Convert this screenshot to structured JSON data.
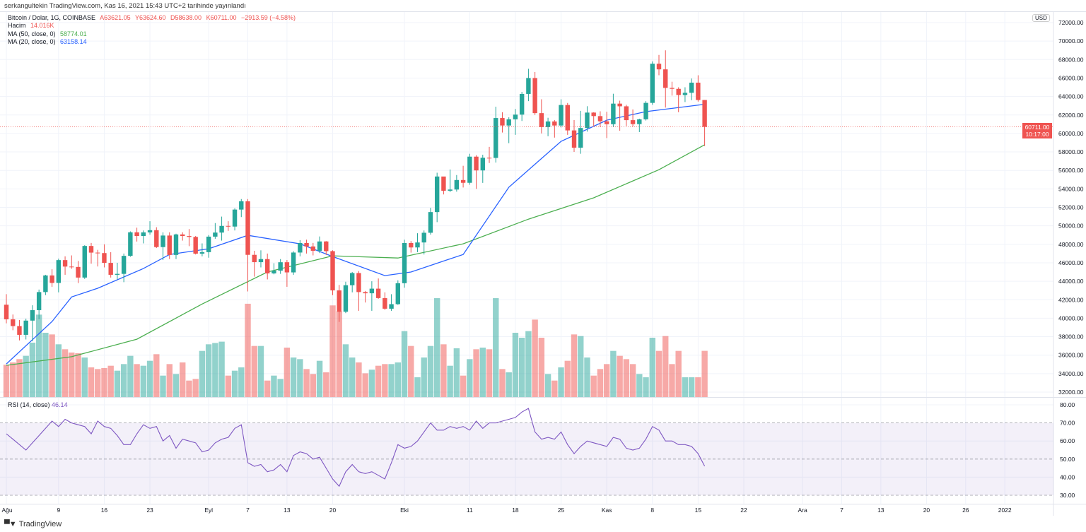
{
  "header": {
    "published": "serkangultekin TradingView.com, Kas 16, 2021 15:43 UTC+2 tarihinde yayınlandı"
  },
  "legend": {
    "symbol": "Bitcoin / Dolar, 1G, COINBASE",
    "open": "A63621.05",
    "high": "Y63624.60",
    "low": "D58638.00",
    "close": "K60711.00",
    "change": "−2913.59 (−4.58%)",
    "volume_label": "Hacim",
    "volume_value": "14.016K",
    "ma50_label": "MA (50, close, 0)",
    "ma50_value": "58774.01",
    "ma20_label": "MA (20, close, 0)",
    "ma20_value": "63158.14",
    "rsi_label": "RSI (14, close)",
    "rsi_value": "46.14"
  },
  "price_axis": {
    "currency": "USD",
    "last_price": "60711.00",
    "countdown": "10:17:00"
  },
  "footer": {
    "logo_mark": "TV",
    "brand": "TradingView"
  },
  "colors": {
    "up": "#26a69a",
    "down": "#ef5350",
    "ma50": "#4caf50",
    "ma20": "#2962ff",
    "rsi": "#7e57c2"
  },
  "chart_data": {
    "type": "candlestick",
    "title": "Bitcoin / Dolar, 1G, COINBASE",
    "x_start": "2021-08-01",
    "ylim": [
      32000,
      72000
    ],
    "y_ticks": [
      "72000.00",
      "70000.00",
      "68000.00",
      "66000.00",
      "64000.00",
      "62000.00",
      "60000.00",
      "58000.00",
      "56000.00",
      "54000.00",
      "52000.00",
      "50000.00",
      "48000.00",
      "46000.00",
      "44000.00",
      "42000.00",
      "40000.00",
      "38000.00",
      "36000.00",
      "34000.00",
      "32000.00"
    ],
    "x_ticks": [
      {
        "day": 0,
        "label": "Ağu"
      },
      {
        "day": 8,
        "label": "9"
      },
      {
        "day": 15,
        "label": "16"
      },
      {
        "day": 22,
        "label": "23"
      },
      {
        "day": 31,
        "label": "Eyl"
      },
      {
        "day": 37,
        "label": "7"
      },
      {
        "day": 43,
        "label": "13"
      },
      {
        "day": 50,
        "label": "20"
      },
      {
        "day": 61,
        "label": "Eki"
      },
      {
        "day": 71,
        "label": "11"
      },
      {
        "day": 78,
        "label": "18"
      },
      {
        "day": 85,
        "label": "25"
      },
      {
        "day": 92,
        "label": "Kas"
      },
      {
        "day": 99,
        "label": "8"
      },
      {
        "day": 106,
        "label": "15"
      },
      {
        "day": 113,
        "label": "22"
      },
      {
        "day": 122,
        "label": "Ara"
      },
      {
        "day": 128,
        "label": "7"
      },
      {
        "day": 134,
        "label": "13"
      },
      {
        "day": 141,
        "label": "20"
      },
      {
        "day": 147,
        "label": "26"
      },
      {
        "day": 153,
        "label": "2022"
      }
    ],
    "open": [
      41460,
      39880,
      39150,
      38200,
      39740,
      40870,
      42830,
      44630,
      43820,
      46290,
      45590,
      45550,
      44400,
      47820,
      47100,
      47050,
      45990,
      44700,
      44800,
      46750,
      49300,
      48900,
      49290,
      49530,
      47700,
      48950,
      46850,
      49070,
      48900,
      48800,
      46990,
      47150,
      48830,
      49270,
      49990,
      49920,
      51760,
      52660,
      46860,
      46070,
      46400,
      44850,
      45150,
      46060,
      44960,
      47110,
      48140,
      47770,
      47300,
      48310,
      47260,
      43010,
      40700,
      43570,
      44890,
      42830,
      42700,
      43200,
      42180,
      41030,
      41520,
      43790,
      48140,
      47660,
      48200,
      49250,
      51490,
      55340,
      53800,
      53930,
      54960,
      54660,
      57490,
      56000,
      57370,
      57350,
      61670,
      60860,
      61530,
      62040,
      64280,
      66000,
      62200,
      60690,
      61300,
      60860,
      63080,
      60330,
      58460,
      60590,
      62260,
      61880,
      61320,
      61000,
      63230,
      62940,
      61440,
      61010,
      61530,
      63310,
      67550,
      66940,
      64930,
      64830,
      64160,
      64400,
      65500,
      63621.05
    ],
    "high": [
      42600,
      40400,
      39800,
      39950,
      41400,
      43100,
      44700,
      45300,
      46450,
      46700,
      46800,
      46200,
      47900,
      48150,
      47400,
      48000,
      47150,
      46000,
      47000,
      49400,
      49800,
      49500,
      50500,
      49850,
      49300,
      49300,
      49150,
      49300,
      49650,
      48900,
      48100,
      49000,
      50300,
      51000,
      50500,
      51900,
      52900,
      52900,
      47300,
      47350,
      47000,
      45950,
      46400,
      46300,
      47250,
      48450,
      48500,
      48150,
      48850,
      48350,
      47350,
      43600,
      43950,
      45000,
      45100,
      42950,
      44000,
      44300,
      42800,
      42600,
      44100,
      48500,
      48350,
      49200,
      49500,
      51950,
      55750,
      55300,
      56100,
      55500,
      56500,
      57800,
      57650,
      57700,
      58550,
      62900,
      62300,
      61750,
      62650,
      64500,
      67000,
      66650,
      63700,
      61700,
      61450,
      63700,
      63300,
      61450,
      62450,
      62950,
      62300,
      62400,
      62350,
      64300,
      63550,
      63100,
      62600,
      61600,
      63500,
      67800,
      68500,
      69000,
      65600,
      65000,
      65000,
      65950,
      66300,
      63624.6
    ],
    "low": [
      39450,
      38700,
      37600,
      37700,
      37500,
      39900,
      42500,
      43400,
      42800,
      44700,
      45350,
      43800,
      44250,
      45900,
      45600,
      45500,
      44400,
      44200,
      43900,
      46650,
      48300,
      48100,
      49050,
      47600,
      46300,
      46400,
      46400,
      48400,
      47800,
      46900,
      46700,
      46550,
      48600,
      48400,
      49450,
      49500,
      50950,
      42900,
      44500,
      45500,
      44200,
      44750,
      44800,
      43400,
      44700,
      46700,
      47000,
      46800,
      47050,
      46850,
      42500,
      39600,
      40550,
      42800,
      40800,
      41700,
      40800,
      42100,
      40900,
      40800,
      41450,
      43300,
      47100,
      47150,
      46900,
      49050,
      50400,
      53400,
      53650,
      53700,
      54150,
      54450,
      54000,
      54650,
      56800,
      56850,
      60100,
      58950,
      59850,
      61350,
      63500,
      62000,
      60000,
      59700,
      59550,
      60650,
      59850,
      58000,
      57800,
      60200,
      60750,
      60700,
      59500,
      60700,
      60300,
      60800,
      60750,
      60150,
      61400,
      63100,
      66300,
      62800,
      64100,
      62300,
      63400,
      63600,
      63450,
      58638
    ],
    "close": [
      39880,
      39150,
      38200,
      39740,
      40870,
      42830,
      44630,
      43820,
      46290,
      45590,
      45550,
      44400,
      47820,
      47100,
      47050,
      45990,
      44700,
      44800,
      46750,
      49300,
      48900,
      49290,
      49530,
      47700,
      48950,
      46850,
      49070,
      48900,
      48800,
      46990,
      47150,
      48830,
      49270,
      49990,
      49920,
      51760,
      52660,
      46860,
      46070,
      46400,
      44850,
      45150,
      46060,
      44960,
      47110,
      48140,
      47770,
      47300,
      48310,
      47260,
      43010,
      40700,
      43570,
      44890,
      42830,
      42700,
      43200,
      42180,
      41030,
      41520,
      43790,
      48140,
      47660,
      48200,
      49250,
      51490,
      55340,
      53800,
      53930,
      54960,
      54660,
      57490,
      56000,
      57370,
      57350,
      61670,
      60860,
      61530,
      62040,
      64280,
      66000,
      62200,
      60690,
      61300,
      60860,
      63080,
      60330,
      58460,
      60590,
      62260,
      61880,
      61320,
      61000,
      63230,
      62940,
      61440,
      61010,
      61530,
      63310,
      67550,
      66940,
      64930,
      64830,
      64160,
      64400,
      65500,
      63620,
      60711
    ],
    "volume_k": [
      9.8,
      10.5,
      11.5,
      12.5,
      16.5,
      25.0,
      19.5,
      19.0,
      16.0,
      14.5,
      13.5,
      13.3,
      12.0,
      9.0,
      8.5,
      8.8,
      9.5,
      8.0,
      10.0,
      12.5,
      10.0,
      9.5,
      11.0,
      13.0,
      6.5,
      10.0,
      7.0,
      10.5,
      5.0,
      5.5,
      14.0,
      16.0,
      16.4,
      16.8,
      6.5,
      8.0,
      9.0,
      28.3,
      15.5,
      15.5,
      5.0,
      6.5,
      5.5,
      15.0,
      12.0,
      11.5,
      8.5,
      7.0,
      11.0,
      7.5,
      27.8,
      26.0,
      16.0,
      12.0,
      10.5,
      7.2,
      8.3,
      9.5,
      10.0,
      10.0,
      10.5,
      20.0,
      15.5,
      6.0,
      12.0,
      15.5,
      30.0,
      16.0,
      9.5,
      14.8,
      6.5,
      11.5,
      14.5,
      15.0,
      14.5,
      30.0,
      8.5,
      7.5,
      19.5,
      18.0,
      20.0,
      23.5,
      18.0,
      7.0,
      5.0,
      9.0,
      11.0,
      19.0,
      18.5,
      12.0,
      6.5,
      8.5,
      10.0,
      14.0,
      12.5,
      11.5,
      10.0,
      7.0,
      6.0,
      18.0,
      14.0,
      18.5,
      10.0,
      14.0,
      6.0,
      6.0,
      6.0,
      14.016
    ],
    "ma20": [
      [
        0,
        35050
      ],
      [
        7,
        39640
      ],
      [
        10,
        42300
      ],
      [
        14,
        43240
      ],
      [
        21,
        45380
      ],
      [
        25,
        46900
      ],
      [
        31,
        47520
      ],
      [
        37,
        48970
      ],
      [
        45,
        48050
      ],
      [
        50,
        46680
      ],
      [
        58,
        44610
      ],
      [
        62,
        45000
      ],
      [
        70,
        46900
      ],
      [
        77,
        54180
      ],
      [
        85,
        59150
      ],
      [
        92,
        61440
      ],
      [
        98,
        62360
      ],
      [
        107,
        63158.14
      ]
    ],
    "ma50": [
      [
        0,
        34900
      ],
      [
        10,
        35830
      ],
      [
        20,
        37730
      ],
      [
        30,
        41540
      ],
      [
        40,
        45000
      ],
      [
        50,
        46750
      ],
      [
        60,
        46520
      ],
      [
        70,
        48050
      ],
      [
        80,
        50720
      ],
      [
        90,
        53030
      ],
      [
        100,
        56080
      ],
      [
        107,
        58774.01
      ]
    ],
    "rsi": {
      "ylim": [
        30,
        80
      ],
      "y_ticks": [
        "80.00",
        "70.00",
        "60.00",
        "50.00",
        "40.00",
        "30.00"
      ],
      "bands": [
        30,
        50,
        70
      ],
      "values": [
        64,
        61,
        58,
        55,
        59,
        63,
        67,
        71,
        68,
        72,
        70,
        69,
        68,
        64,
        71,
        68,
        67,
        63,
        58,
        58,
        64,
        69,
        67,
        68,
        60,
        63,
        56,
        61,
        60,
        59,
        54,
        55,
        59,
        61,
        62,
        67,
        69,
        48,
        46,
        47,
        43,
        44,
        47,
        43,
        52,
        54,
        53,
        50,
        51,
        45,
        39,
        35,
        43,
        47,
        43,
        42,
        43,
        41,
        39,
        48,
        58,
        56,
        57,
        60,
        65,
        70,
        66,
        66,
        68,
        67,
        68,
        66,
        71,
        67,
        70,
        70,
        71,
        72,
        73,
        76,
        78,
        65,
        61,
        62,
        61,
        65,
        58,
        53,
        57,
        60,
        59,
        58,
        57,
        62,
        61,
        56,
        55,
        56,
        61,
        68,
        66,
        60,
        60,
        58,
        58,
        57,
        53,
        46.14
      ]
    }
  }
}
